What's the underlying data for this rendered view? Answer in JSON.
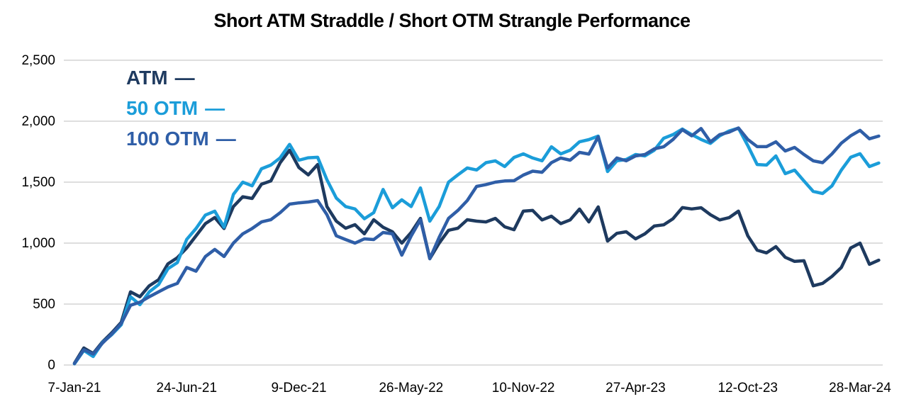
{
  "title": "Short ATM Straddle / Short OTM Strangle Performance",
  "legend": {
    "dash": "—",
    "items": [
      {
        "label": "ATM"
      },
      {
        "label": "50 OTM"
      },
      {
        "label": "100 OTM"
      }
    ]
  },
  "colors": {
    "background": "#ffffff",
    "grid": "#d9d9d9",
    "axis_text": "#000000",
    "title_text": "#000000"
  },
  "chart_data": {
    "type": "line",
    "title": "Short ATM Straddle / Short OTM Strangle Performance",
    "xlabel": "",
    "ylabel": "",
    "grid": true,
    "legend_position": "top-left-inside",
    "ylim": [
      0,
      2500
    ],
    "y_ticks": [
      0,
      500,
      1000,
      1500,
      2000,
      2500
    ],
    "y_tick_labels": [
      "0",
      "500",
      "1,000",
      "1,500",
      "2,000",
      "2,500"
    ],
    "x_unit": "weeks since 7-Jan-21, step 2",
    "x_step_weeks": 2,
    "xlim_weeks": [
      0,
      172
    ],
    "x_tick_weeks": [
      0,
      24,
      48,
      72,
      96,
      120,
      144,
      168
    ],
    "x_tick_labels": [
      "7-Jan-21",
      "24-Jun-21",
      "9-Dec-21",
      "26-May-22",
      "10-Nov-22",
      "27-Apr-23",
      "12-Oct-23",
      "28-Mar-24"
    ],
    "series": [
      {
        "name": "ATM",
        "color": "#1e3a5f",
        "values": [
          15,
          140,
          95,
          190,
          265,
          350,
          600,
          560,
          650,
          700,
          830,
          880,
          960,
          1060,
          1160,
          1210,
          1120,
          1300,
          1380,
          1366,
          1483,
          1510,
          1660,
          1762,
          1620,
          1560,
          1645,
          1300,
          1180,
          1122,
          1151,
          1076,
          1192,
          1130,
          1093,
          1000,
          1087,
          1203,
          872,
          1000,
          1105,
          1122,
          1192,
          1180,
          1174,
          1203,
          1134,
          1110,
          1262,
          1268,
          1190,
          1221,
          1160,
          1190,
          1279,
          1174,
          1297,
          1017,
          1080,
          1093,
          1035,
          1076,
          1140,
          1150,
          1200,
          1291,
          1280,
          1290,
          1233,
          1190,
          1209,
          1262,
          1060,
          942,
          920,
          971,
          884,
          850,
          855,
          650,
          670,
          727,
          800,
          960,
          1000,
          826,
          860
        ]
      },
      {
        "name": "50 OTM",
        "color": "#1b9dd9",
        "values": [
          10,
          120,
          70,
          185,
          250,
          330,
          560,
          495,
          600,
          660,
          790,
          840,
          1030,
          1120,
          1230,
          1262,
          1130,
          1400,
          1500,
          1470,
          1610,
          1640,
          1700,
          1810,
          1680,
          1700,
          1704,
          1520,
          1370,
          1300,
          1280,
          1200,
          1250,
          1440,
          1290,
          1355,
          1300,
          1453,
          1180,
          1300,
          1500,
          1560,
          1616,
          1600,
          1660,
          1675,
          1628,
          1703,
          1732,
          1698,
          1675,
          1790,
          1732,
          1762,
          1831,
          1849,
          1878,
          1587,
          1675,
          1686,
          1727,
          1715,
          1762,
          1860,
          1890,
          1936,
          1890,
          1850,
          1818,
          1880,
          1920,
          1943,
          1800,
          1645,
          1640,
          1715,
          1570,
          1599,
          1510,
          1424,
          1407,
          1470,
          1599,
          1704,
          1733,
          1628,
          1657
        ]
      },
      {
        "name": "100 OTM",
        "color": "#2f5ea7",
        "values": [
          12,
          125,
          90,
          180,
          255,
          340,
          490,
          515,
          560,
          600,
          640,
          670,
          800,
          770,
          890,
          948,
          890,
          1000,
          1076,
          1120,
          1174,
          1192,
          1250,
          1320,
          1330,
          1337,
          1349,
          1233,
          1060,
          1029,
          1000,
          1035,
          1029,
          1087,
          1076,
          901,
          1058,
          1192,
          872,
          1047,
          1203,
          1268,
          1349,
          1465,
          1480,
          1500,
          1510,
          1512,
          1558,
          1590,
          1581,
          1660,
          1698,
          1680,
          1744,
          1730,
          1872,
          1616,
          1698,
          1675,
          1715,
          1727,
          1773,
          1790,
          1850,
          1930,
          1880,
          1940,
          1830,
          1890,
          1910,
          1945,
          1850,
          1791,
          1791,
          1831,
          1756,
          1785,
          1727,
          1675,
          1660,
          1732,
          1820,
          1880,
          1925,
          1856,
          1878
        ]
      }
    ]
  }
}
